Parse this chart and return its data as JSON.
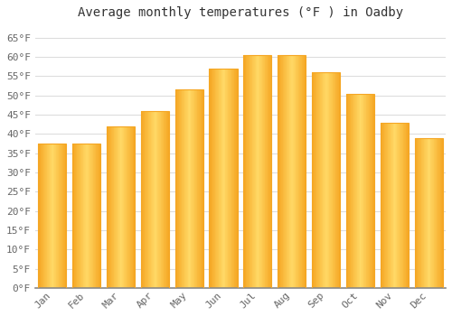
{
  "title": "Average monthly temperatures (°F ) in Oadby",
  "months": [
    "Jan",
    "Feb",
    "Mar",
    "Apr",
    "May",
    "Jun",
    "Jul",
    "Aug",
    "Sep",
    "Oct",
    "Nov",
    "Dec"
  ],
  "values": [
    37.5,
    37.5,
    42,
    46,
    51.5,
    57,
    60.5,
    60.5,
    56,
    50.5,
    43,
    39
  ],
  "bar_color_center": "#FFD966",
  "bar_color_edge": "#F5A623",
  "background_color": "#FFFFFF",
  "plot_bg_color": "#FFFFFF",
  "grid_color": "#DDDDDD",
  "ylim": [
    0,
    68
  ],
  "yticks": [
    0,
    5,
    10,
    15,
    20,
    25,
    30,
    35,
    40,
    45,
    50,
    55,
    60,
    65
  ],
  "ylabel_format": "°F",
  "title_fontsize": 10,
  "tick_fontsize": 8,
  "font_family": "monospace",
  "bar_width": 0.82
}
